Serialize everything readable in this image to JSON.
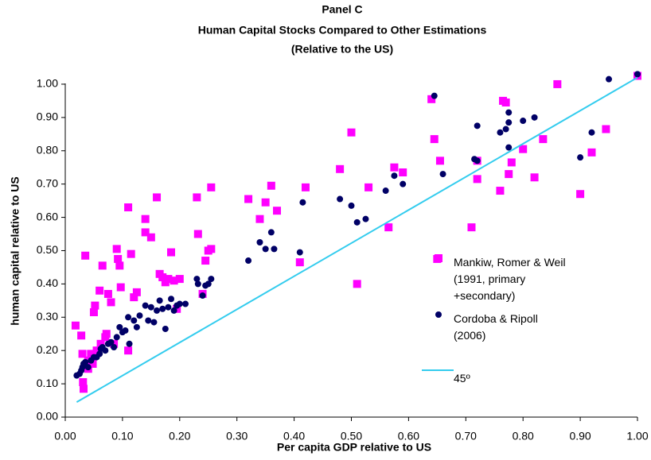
{
  "chart_data": {
    "type": "scatter",
    "title": [
      "Panel C",
      "Human Capital Stocks Compared to Other Estimations",
      "(Relative to the US)"
    ],
    "xlabel": "Per capita GDP relative to US",
    "ylabel": "human capital relative to US",
    "xlim": [
      0,
      1
    ],
    "ylim": [
      0,
      1.05
    ],
    "xticks": [
      {
        "value": 0,
        "label": "0.00"
      },
      {
        "value": 0.1,
        "label": "0.10"
      },
      {
        "value": 0.2,
        "label": "0.20"
      },
      {
        "value": 0.3,
        "label": "0.30"
      },
      {
        "value": 0.4,
        "label": "0.40"
      },
      {
        "value": 0.5,
        "label": "0.50"
      },
      {
        "value": 0.6,
        "label": "0.60"
      },
      {
        "value": 0.7,
        "label": "0.70"
      },
      {
        "value": 0.8,
        "label": "0.80"
      },
      {
        "value": 0.9,
        "label": "0.90"
      },
      {
        "value": 1,
        "label": "1.00"
      }
    ],
    "yticks": [
      {
        "value": 0,
        "label": "0.00"
      },
      {
        "value": 0.1,
        "label": "0.10"
      },
      {
        "value": 0.2,
        "label": "0.20"
      },
      {
        "value": 0.3,
        "label": "0.30"
      },
      {
        "value": 0.4,
        "label": "0.40"
      },
      {
        "value": 0.5,
        "label": "0.50"
      },
      {
        "value": 0.6,
        "label": "0.60"
      },
      {
        "value": 0.7,
        "label": "0.70"
      },
      {
        "value": 0.8,
        "label": "0.80"
      },
      {
        "value": 0.9,
        "label": "0.90"
      },
      {
        "value": 1,
        "label": "1.00"
      }
    ],
    "grid": false,
    "series": [
      {
        "name": "Mankiw, Romer & Weil (1991, primary +secondary)",
        "color": "#ff00ff",
        "marker": "square",
        "x": [
          0.018,
          0.028,
          0.03,
          0.031,
          0.032,
          0.035,
          0.04,
          0.04,
          0.045,
          0.048,
          0.05,
          0.052,
          0.055,
          0.06,
          0.062,
          0.065,
          0.07,
          0.072,
          0.075,
          0.08,
          0.085,
          0.09,
          0.092,
          0.095,
          0.097,
          0.11,
          0.11,
          0.115,
          0.12,
          0.125,
          0.14,
          0.14,
          0.15,
          0.16,
          0.165,
          0.17,
          0.175,
          0.18,
          0.185,
          0.19,
          0.2,
          0.195,
          0.23,
          0.232,
          0.24,
          0.245,
          0.25,
          0.255,
          0.255,
          0.32,
          0.34,
          0.35,
          0.36,
          0.37,
          0.41,
          0.42,
          0.48,
          0.5,
          0.51,
          0.53,
          0.565,
          0.575,
          0.59,
          0.64,
          0.645,
          0.655,
          0.65,
          0.71,
          0.72,
          0.72,
          0.76,
          0.765,
          0.77,
          0.775,
          0.78,
          0.8,
          0.82,
          0.835,
          0.86,
          0.9,
          0.92,
          0.945,
          1.0
        ],
        "values": [
          0.275,
          0.245,
          0.19,
          0.105,
          0.085,
          0.485,
          0.17,
          0.145,
          0.19,
          0.16,
          0.315,
          0.335,
          0.2,
          0.38,
          0.22,
          0.455,
          0.24,
          0.25,
          0.37,
          0.345,
          0.22,
          0.505,
          0.475,
          0.455,
          0.39,
          0.63,
          0.2,
          0.49,
          0.36,
          0.375,
          0.595,
          0.555,
          0.54,
          0.66,
          0.43,
          0.42,
          0.405,
          0.415,
          0.495,
          0.41,
          0.415,
          0.325,
          0.66,
          0.55,
          0.37,
          0.47,
          0.5,
          0.505,
          0.69,
          0.655,
          0.595,
          0.645,
          0.695,
          0.62,
          0.465,
          0.69,
          0.745,
          0.855,
          0.4,
          0.69,
          0.57,
          0.75,
          0.735,
          0.955,
          0.835,
          0.77,
          0.475,
          0.57,
          0.77,
          0.715,
          0.68,
          0.95,
          0.945,
          0.73,
          0.765,
          0.805,
          0.72,
          0.835,
          1.0,
          0.67,
          0.795,
          0.865,
          1.025
        ]
      },
      {
        "name": "Cordoba & Ripoll (2006)",
        "color": "#000066",
        "marker": "circle",
        "x": [
          0.02,
          0.025,
          0.028,
          0.03,
          0.032,
          0.035,
          0.04,
          0.045,
          0.05,
          0.055,
          0.06,
          0.062,
          0.065,
          0.07,
          0.075,
          0.08,
          0.085,
          0.09,
          0.095,
          0.1,
          0.105,
          0.11,
          0.112,
          0.12,
          0.125,
          0.13,
          0.14,
          0.145,
          0.15,
          0.155,
          0.16,
          0.165,
          0.17,
          0.175,
          0.18,
          0.185,
          0.19,
          0.195,
          0.2,
          0.21,
          0.23,
          0.232,
          0.24,
          0.245,
          0.25,
          0.255,
          0.32,
          0.34,
          0.35,
          0.36,
          0.365,
          0.41,
          0.415,
          0.48,
          0.5,
          0.51,
          0.525,
          0.56,
          0.575,
          0.59,
          0.645,
          0.66,
          0.715,
          0.72,
          0.72,
          0.76,
          0.77,
          0.775,
          0.775,
          0.775,
          0.8,
          0.82,
          0.9,
          0.92,
          0.95,
          1.0
        ],
        "values": [
          0.125,
          0.13,
          0.14,
          0.15,
          0.16,
          0.165,
          0.15,
          0.17,
          0.18,
          0.18,
          0.19,
          0.205,
          0.21,
          0.2,
          0.22,
          0.225,
          0.21,
          0.24,
          0.27,
          0.255,
          0.26,
          0.3,
          0.22,
          0.29,
          0.27,
          0.305,
          0.335,
          0.29,
          0.33,
          0.285,
          0.32,
          0.35,
          0.325,
          0.265,
          0.33,
          0.355,
          0.32,
          0.335,
          0.34,
          0.34,
          0.415,
          0.4,
          0.365,
          0.395,
          0.4,
          0.415,
          0.47,
          0.525,
          0.505,
          0.555,
          0.505,
          0.495,
          0.645,
          0.655,
          0.635,
          0.585,
          0.595,
          0.68,
          0.725,
          0.7,
          0.965,
          0.73,
          0.775,
          0.875,
          0.77,
          0.855,
          0.865,
          0.915,
          0.885,
          0.81,
          0.89,
          0.9,
          0.78,
          0.855,
          1.015,
          1.03
        ]
      },
      {
        "name": "45º",
        "color": "#33ccee",
        "marker": "line",
        "x": [
          0.02,
          1.0
        ],
        "values": [
          0.045,
          1.02
        ]
      }
    ]
  }
}
